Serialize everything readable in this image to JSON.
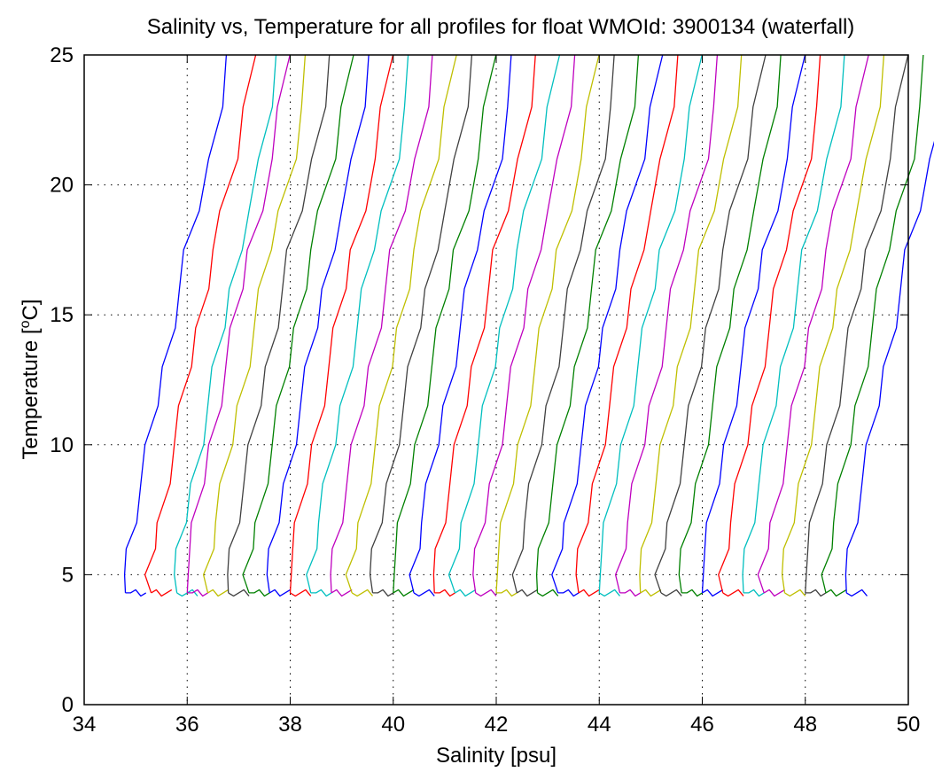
{
  "chart_data": {
    "type": "line",
    "title": "Salinity vs, Temperature for all profiles for float WMOId: 3900134 (waterfall)",
    "xlabel": "Salinity [psu]",
    "ylabel_main": "Temperature [",
    "ylabel_sup": "o",
    "ylabel_end": "C]",
    "xlim": [
      34,
      50
    ],
    "ylim": [
      0,
      25
    ],
    "xticks": [
      34,
      36,
      38,
      40,
      42,
      44,
      46,
      48,
      50
    ],
    "yticks": [
      0,
      5,
      10,
      15,
      20,
      25
    ],
    "grid": true,
    "legend": "none",
    "colors": [
      "#0000ff",
      "#ff0000",
      "#00bfbf",
      "#bf00bf",
      "#bfbf00",
      "#404040",
      "#008000"
    ],
    "profile_offsets_psu": [
      0.0,
      0.5,
      1.0,
      1.2,
      1.6,
      2.0,
      2.4,
      2.8,
      3.2,
      3.6,
      4.0,
      4.4,
      4.8,
      5.2,
      5.6,
      6.0,
      6.4,
      6.8,
      7.2,
      7.6,
      8.0,
      8.4,
      8.8,
      9.2,
      9.6,
      10.0,
      10.4,
      10.8,
      11.2,
      11.6,
      12.0,
      12.4,
      12.8,
      13.2,
      13.6,
      14.0
    ],
    "base_profile": {
      "salinity": [
        34.8,
        34.75,
        34.85,
        34.95,
        35.1,
        35.25,
        35.4,
        35.55,
        35.7,
        35.85,
        36.0,
        36.2,
        36.45,
        36.62,
        36.76
      ],
      "temperature": [
        4.3,
        5.0,
        6.0,
        7.0,
        8.5,
        10.0,
        11.5,
        13.0,
        14.5,
        16.0,
        17.5,
        19.0,
        21.0,
        23.0,
        25.0
      ]
    }
  }
}
